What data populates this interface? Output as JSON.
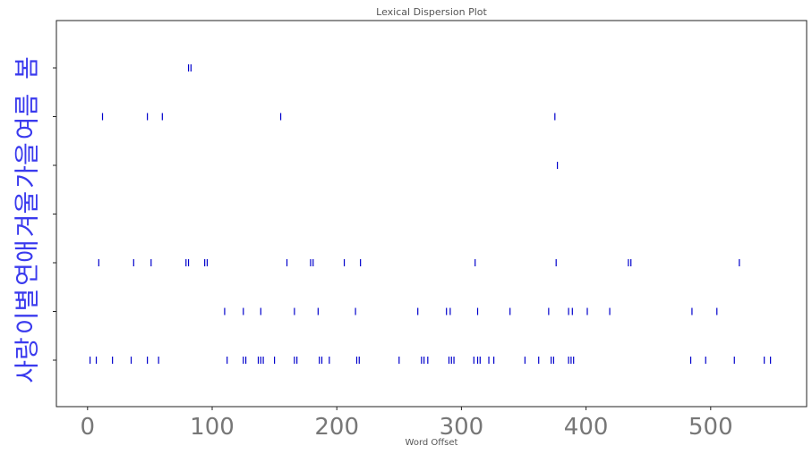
{
  "chart_data": {
    "type": "scatter",
    "title": "Lexical Dispersion Plot",
    "xlabel": "Word Offset",
    "ylabel": "",
    "xlim": [
      -25,
      577
    ],
    "xticks": [
      0,
      100,
      200,
      300,
      400,
      500
    ],
    "xtick_labels": [
      "0",
      "100",
      "200",
      "300",
      "400",
      "500"
    ],
    "marker": "|",
    "marker_color": "#0000cc",
    "series": [
      {
        "name": "봄",
        "values": [
          81,
          83
        ]
      },
      {
        "name": "여름",
        "values": [
          12,
          48,
          60,
          155,
          375
        ]
      },
      {
        "name": "가을",
        "values": [
          377
        ]
      },
      {
        "name": "겨울",
        "values": []
      },
      {
        "name": "연애",
        "values": [
          9,
          37,
          51,
          79,
          81,
          94,
          96,
          160,
          179,
          181,
          206,
          219,
          311,
          376,
          434,
          436,
          523
        ]
      },
      {
        "name": "이별",
        "values": [
          110,
          125,
          139,
          166,
          185,
          215,
          265,
          288,
          291,
          313,
          339,
          370,
          386,
          389,
          401,
          419,
          485,
          505
        ]
      },
      {
        "name": "사랑",
        "values": [
          2,
          7,
          20,
          35,
          48,
          57,
          112,
          125,
          127,
          137,
          139,
          141,
          150,
          166,
          168,
          186,
          188,
          194,
          216,
          218,
          250,
          268,
          270,
          273,
          290,
          292,
          294,
          310,
          313,
          315,
          322,
          326,
          351,
          362,
          372,
          374,
          386,
          388,
          390,
          484,
          496,
          519,
          543,
          548
        ]
      }
    ]
  }
}
